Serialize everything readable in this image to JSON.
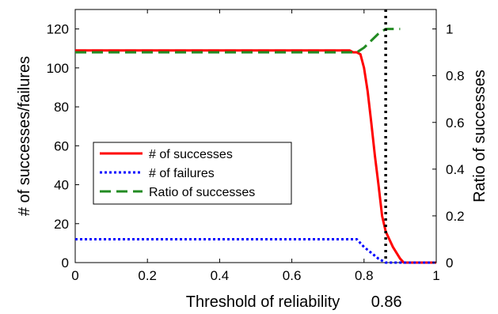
{
  "chart_data": {
    "type": "line",
    "xlabel": "Threshold of reliability",
    "ylabel_left": "# of successes/failures",
    "ylabel_right": "Ratio of successes",
    "xlim": [
      0,
      1
    ],
    "ylim_left": [
      0,
      130
    ],
    "ylim_right": [
      0,
      1.0833
    ],
    "x_ticks": [
      0,
      0.2,
      0.4,
      0.6,
      0.8,
      1
    ],
    "x_tick_labels": [
      "0",
      "0.2",
      "0.4",
      "0.6",
      "0.8",
      "1"
    ],
    "y_left_ticks": [
      0,
      20,
      40,
      60,
      80,
      100,
      120
    ],
    "y_left_tick_labels": [
      "0",
      "20",
      "40",
      "60",
      "80",
      "100",
      "120"
    ],
    "y_right_ticks": [
      0,
      0.2,
      0.4,
      0.6,
      0.8,
      1
    ],
    "y_right_tick_labels": [
      "0",
      "0.2",
      "0.4",
      "0.6",
      "0.8",
      "1"
    ],
    "vline": {
      "x": 0.86,
      "label": "0.86",
      "color": "#000000",
      "style": "dotted"
    },
    "legend": {
      "placement": "center-left"
    },
    "grid": false,
    "series": [
      {
        "name": "# of successes",
        "axis": "left",
        "color": "#ff0000",
        "style": "solid",
        "points": [
          [
            0,
            109
          ],
          [
            0.76,
            109
          ],
          [
            0.77,
            108
          ],
          [
            0.78,
            108
          ],
          [
            0.79,
            107
          ],
          [
            0.8,
            100
          ],
          [
            0.81,
            88
          ],
          [
            0.82,
            72
          ],
          [
            0.83,
            55
          ],
          [
            0.84,
            40
          ],
          [
            0.85,
            24
          ],
          [
            0.86,
            16
          ],
          [
            0.87,
            12
          ],
          [
            0.88,
            8
          ],
          [
            0.89,
            5
          ],
          [
            0.9,
            2
          ],
          [
            0.91,
            0
          ],
          [
            1,
            0
          ]
        ]
      },
      {
        "name": "# of failures",
        "axis": "left",
        "color": "#0000ff",
        "style": "dotted",
        "points": [
          [
            0,
            12
          ],
          [
            0.78,
            12
          ],
          [
            0.8,
            8
          ],
          [
            0.82,
            5
          ],
          [
            0.84,
            2
          ],
          [
            0.86,
            0
          ],
          [
            1,
            0
          ]
        ]
      },
      {
        "name": "Ratio of successes",
        "axis": "right",
        "color": "#228b22",
        "style": "dashed",
        "points": [
          [
            0,
            0.9
          ],
          [
            0.78,
            0.9
          ],
          [
            0.8,
            0.92
          ],
          [
            0.82,
            0.95
          ],
          [
            0.84,
            0.98
          ],
          [
            0.86,
            1.0
          ],
          [
            0.9,
            1.0
          ]
        ]
      }
    ]
  }
}
